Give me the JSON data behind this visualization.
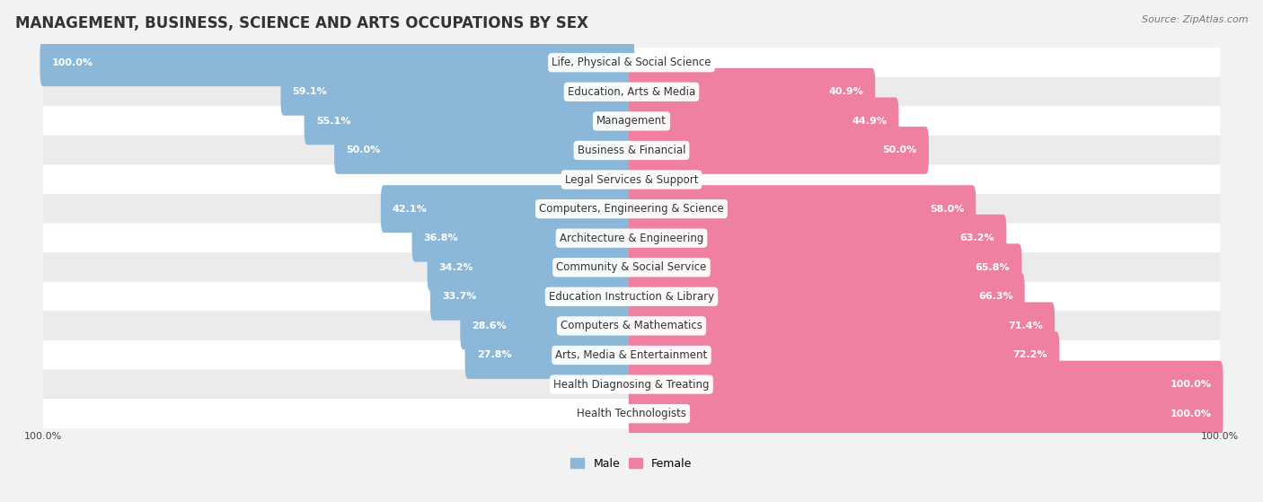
{
  "title": "MANAGEMENT, BUSINESS, SCIENCE AND ARTS OCCUPATIONS BY SEX",
  "source": "Source: ZipAtlas.com",
  "categories": [
    "Life, Physical & Social Science",
    "Education, Arts & Media",
    "Management",
    "Business & Financial",
    "Legal Services & Support",
    "Computers, Engineering & Science",
    "Architecture & Engineering",
    "Community & Social Service",
    "Education Instruction & Library",
    "Computers & Mathematics",
    "Arts, Media & Entertainment",
    "Health Diagnosing & Treating",
    "Health Technologists"
  ],
  "male": [
    100.0,
    59.1,
    55.1,
    50.0,
    0.0,
    42.1,
    36.8,
    34.2,
    33.7,
    28.6,
    27.8,
    0.0,
    0.0
  ],
  "female": [
    0.0,
    40.9,
    44.9,
    50.0,
    0.0,
    58.0,
    63.2,
    65.8,
    66.3,
    71.4,
    72.2,
    100.0,
    100.0
  ],
  "male_color": "#8bb8d8",
  "female_color": "#f080a0",
  "background_color": "#f2f2f2",
  "row_colors": [
    "#ffffff",
    "#ebebeb"
  ],
  "title_fontsize": 12,
  "label_fontsize": 8.5,
  "value_fontsize": 8,
  "legend_fontsize": 9,
  "bar_height": 0.62
}
